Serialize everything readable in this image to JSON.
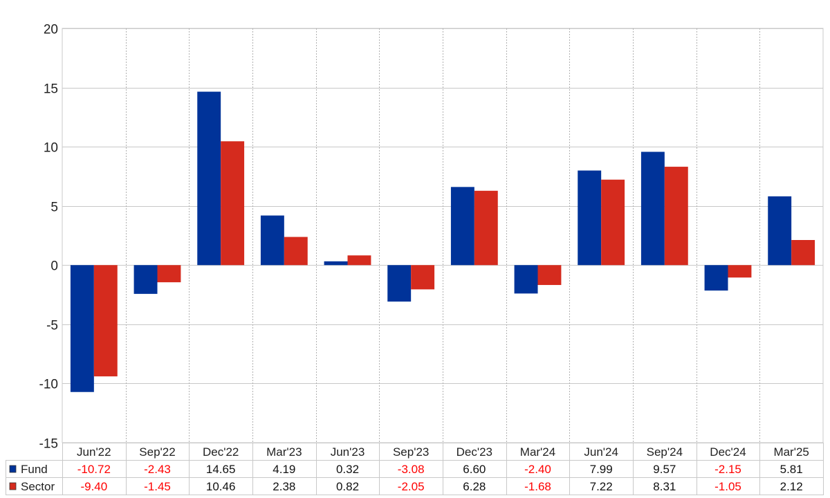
{
  "chart_data": {
    "type": "bar",
    "categories": [
      "Jun'22",
      "Sep'22",
      "Dec'22",
      "Mar'23",
      "Jun'23",
      "Sep'23",
      "Dec'23",
      "Mar'24",
      "Jun'24",
      "Sep'24",
      "Dec'24",
      "Mar'25"
    ],
    "series": [
      {
        "name": "Fund",
        "color": "#003399",
        "values": [
          -10.72,
          -2.43,
          14.65,
          4.19,
          0.32,
          -3.08,
          6.6,
          -2.4,
          7.99,
          9.57,
          -2.15,
          5.81
        ],
        "labels": [
          "-10.72",
          "-2.43",
          "14.65",
          "4.19",
          "0.32",
          "-3.08",
          "6.60",
          "-2.40",
          "7.99",
          "9.57",
          "-2.15",
          "5.81"
        ]
      },
      {
        "name": "Sector",
        "color": "#d52b1e",
        "values": [
          -9.4,
          -1.45,
          10.46,
          2.38,
          0.82,
          -2.05,
          6.28,
          -1.68,
          7.22,
          8.31,
          -1.05,
          2.12
        ],
        "labels": [
          "-9.40",
          "-1.45",
          "10.46",
          "2.38",
          "0.82",
          "-2.05",
          "6.28",
          "-1.68",
          "7.22",
          "8.31",
          "-1.05",
          "2.12"
        ]
      }
    ],
    "ylim": [
      -15,
      20
    ],
    "yticks": [
      "20",
      "15",
      "10",
      "5",
      "0",
      "-5",
      "-10",
      "-15"
    ],
    "grid": true,
    "legend": "data table, left",
    "negative_value_color": "#ff0000",
    "positive_value_color": "#111111",
    "title": "",
    "xlabel": "",
    "ylabel": ""
  }
}
